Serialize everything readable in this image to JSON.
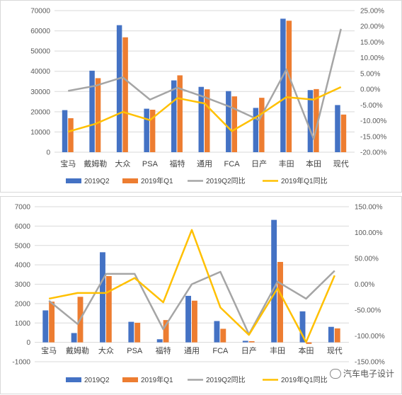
{
  "colors": {
    "q2": "#4472C4",
    "q1": "#ED7D31",
    "q2_ratio": "#A5A5A5",
    "q1_ratio": "#FFC000",
    "grid": "#d9d9d9"
  },
  "watermark": "汽车电子设计",
  "chart_data": [
    {
      "type": "bar",
      "categories": [
        "宝马",
        "戴姆勒",
        "大众",
        "PSA",
        "福特",
        "通用",
        "FCA",
        "日产",
        "丰田",
        "本田",
        "现代"
      ],
      "series": [
        {
          "name": "2019Q2",
          "type": "bar",
          "axis": "left",
          "values": [
            20800,
            40300,
            62800,
            21500,
            35500,
            32300,
            30200,
            21900,
            66000,
            30700,
            23300
          ]
        },
        {
          "name": "2019年Q1",
          "type": "bar",
          "axis": "left",
          "values": [
            16800,
            36600,
            56800,
            21000,
            38000,
            31100,
            27600,
            26900,
            65000,
            31200,
            18600
          ]
        },
        {
          "name": "2019Q2同比",
          "type": "line",
          "axis": "right",
          "values": [
            -0.005,
            0.011,
            0.038,
            -0.033,
            0.005,
            -0.025,
            -0.058,
            -0.098,
            0.063,
            -0.158,
            0.192
          ]
        },
        {
          "name": "2019年Q1同比",
          "type": "line",
          "axis": "right",
          "values": [
            -0.135,
            -0.11,
            -0.072,
            -0.098,
            -0.028,
            -0.045,
            -0.133,
            -0.083,
            -0.025,
            -0.033,
            0.007
          ]
        }
      ],
      "ylim": [
        0,
        70000
      ],
      "y_ticks": [
        0,
        10000,
        20000,
        30000,
        40000,
        50000,
        60000,
        70000
      ],
      "y2lim": [
        -0.2,
        0.25
      ],
      "y2_ticks": [
        "-20.00%",
        "-15.00%",
        "-10.00%",
        "-5.00%",
        "0.00%",
        "5.00%",
        "10.00%",
        "15.00%",
        "20.00%",
        "25.00%"
      ],
      "grid": true,
      "legend": "bottom"
    },
    {
      "type": "bar",
      "categories": [
        "宝马",
        "戴姆勒",
        "大众",
        "PSA",
        "福特",
        "通用",
        "FCA",
        "日产",
        "丰田",
        "本田",
        "现代"
      ],
      "series": [
        {
          "name": "2019Q2",
          "type": "bar",
          "axis": "left",
          "values": [
            1650,
            480,
            4650,
            1060,
            160,
            2400,
            1100,
            80,
            6320,
            1600,
            800
          ]
        },
        {
          "name": "2019年Q1",
          "type": "bar",
          "axis": "left",
          "values": [
            2100,
            2350,
            3420,
            1010,
            1150,
            2150,
            700,
            60,
            4150,
            -80,
            720
          ]
        },
        {
          "name": "2019Q2同比",
          "type": "line",
          "axis": "right",
          "values": [
            -0.32,
            -0.77,
            0.2,
            0.2,
            -0.87,
            0.0,
            0.24,
            -0.97,
            0.05,
            -0.28,
            0.26
          ]
        },
        {
          "name": "2019年Q1同比",
          "type": "line",
          "axis": "right",
          "values": [
            -0.28,
            -0.17,
            -0.17,
            0.12,
            -0.35,
            1.05,
            -0.45,
            -0.98,
            -0.08,
            -1.12,
            0.17
          ]
        }
      ],
      "ylim": [
        -1000,
        7000
      ],
      "y_ticks": [
        -1000,
        0,
        1000,
        2000,
        3000,
        4000,
        5000,
        6000,
        7000
      ],
      "y2lim": [
        -1.5,
        1.5
      ],
      "y2_ticks": [
        "-150.00%",
        "-100.00%",
        "-50.00%",
        "0.00%",
        "50.00%",
        "100.00%",
        "150.00%"
      ],
      "grid": true,
      "legend": "bottom"
    }
  ]
}
